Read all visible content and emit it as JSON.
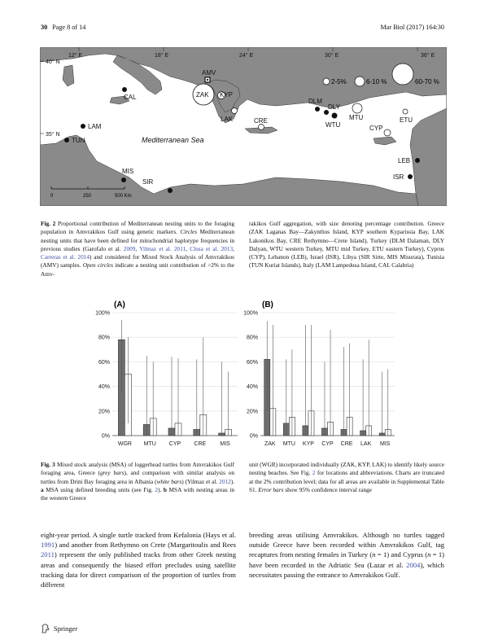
{
  "header": {
    "page_num": "30",
    "page_of": "Page 8 of 14",
    "journal": "Mar Biol (2017) 164:30"
  },
  "map": {
    "lon_labels": [
      "12° E",
      "18° E",
      "24° E",
      "30° E",
      "36° E"
    ],
    "lat_labels": [
      "40° N",
      "35° N"
    ],
    "sea_label": "Mediterranean Sea",
    "legend": [
      "2-5%",
      "6-10 %",
      "60-70 %"
    ],
    "scale": [
      "0",
      "250",
      "500 Km"
    ],
    "sites": [
      "AMV",
      "ZAK",
      "KYP",
      "LAK",
      "CRE",
      "CAL",
      "LAM",
      "TUN",
      "MIS",
      "SIR",
      "DLM",
      "DLY",
      "WTU",
      "MTU",
      "CYP",
      "ETU",
      "LEB",
      "ISR"
    ]
  },
  "fig2_caption": {
    "label": "Fig. 2",
    "left": "Proportional contribution of Mediterranean nesting units to the foraging population in Amvrakikos Gulf using genetic markers.",
    "circles_word": "Circles",
    "left_2": "Mediterranean nesting units that have been defined for mitochondrial haplotype frequencies in previous studies (Garofalo et al.",
    "ref1": "2009",
    "ref2": "Yilmaz et al. 2011",
    "ref3": "Clusa et al. 2013",
    "ref4": "Carreras et al. 2014",
    "left_3": "and considered for Mixed Stock Analysis of Amvrakikos (AMV) samples.",
    "open_circles": "Open circles",
    "left_4": "indicate a nesting unit contribution of >2% to the Amv-",
    "right": "rakikos Gulf aggregation, with size denoting percentage contribution. Greece (ZAK Laganas Bay—Zakynthos Island, KYP southern Kyparissia Bay, LAK Lakonikos Bay, CRE Rethymno—Crete Island), Turkey (DLM Dalaman, DLY Dalyan, WTU western Turkey, MTU mid Turkey, ETU eastern Turkey), Cyprus (CYP), Lebanon (LEB), Israel (ISR), Libya (SIR Sirte, MIS Misurata), Tunisia (TUN Kuriat Islands), Italy (LAM Lampedusa Island, CAL Calabria)"
  },
  "chart_data": [
    {
      "type": "bar",
      "title": "(A)",
      "categories": [
        "WGR",
        "MTU",
        "CYP",
        "CRE",
        "MIS"
      ],
      "series": [
        {
          "values": [
            78,
            9,
            6,
            5,
            2
          ],
          "color": "#6e6e6e"
        },
        {
          "values": [
            50,
            14,
            10,
            17,
            5
          ],
          "color": "#ffffff"
        }
      ],
      "error_upper": [
        [
          94,
          65,
          64,
          62,
          60
        ],
        [
          80,
          60,
          63,
          80,
          52
        ]
      ],
      "error_lower": [
        [
          35,
          0,
          0,
          0,
          0
        ],
        [
          10,
          0,
          0,
          0,
          0
        ]
      ],
      "yticks": [
        "0%",
        "20%",
        "40%",
        "60%",
        "80%",
        "100%"
      ],
      "ylim": [
        0,
        100
      ]
    },
    {
      "type": "bar",
      "title": "(B)",
      "categories": [
        "ZAK",
        "MTU",
        "KYP",
        "CYP",
        "CRE",
        "LAK",
        "MIS"
      ],
      "series": [
        {
          "values": [
            62,
            10,
            8,
            6,
            5,
            4,
            2
          ],
          "color": "#6e6e6e"
        },
        {
          "values": [
            22,
            15,
            20,
            11,
            15,
            8,
            5
          ],
          "color": "#ffffff"
        }
      ],
      "error_upper": [
        [
          93,
          62,
          90,
          60,
          72,
          62,
          52
        ],
        [
          90,
          70,
          90,
          86,
          75,
          78,
          54
        ]
      ],
      "error_lower": [
        [
          20,
          0,
          0,
          0,
          0,
          0,
          0
        ],
        [
          0,
          0,
          0,
          0,
          0,
          0,
          0
        ]
      ],
      "yticks": [
        "0%",
        "20%",
        "40%",
        "60%",
        "80%",
        "100%"
      ],
      "ylim": [
        0,
        100
      ]
    }
  ],
  "fig3_caption": {
    "label": "Fig. 3",
    "left_1": "Mixed stock analysis (MSA) of loggerhead turtles from Amvrakikos Gulf foraging area, Greece (",
    "grey_bars": "grey bars",
    "left_2": "), and comparison with similar analysis on turtles from Drini Bay foraging area in Albania (",
    "white_bars": "white bars",
    "left_3": ") (Yilmaz et al.",
    "ref": "2012",
    "left_4": ").",
    "a_label": "a",
    "left_5": "MSA using defined breeding units (see Fig.",
    "fig2ref": "2",
    "left_6": ").",
    "b_label": "b",
    "left_7": "MSA with nesting areas in the western Greece",
    "right_1": "unit (WGR) incorporated individually (ZAK, KYP, LAK) to identify likely source nesting beaches. See Fig.",
    "right_fig2": "2",
    "right_2": "for locations and abbreviations. Charts are truncated at the 2% contribution level; data for all areas are available in Supplemental Table S1.",
    "error_bars": "Error bars",
    "right_3": "show 95% confidence interval range"
  },
  "body": {
    "l1": "eight-year period. A single turtle tracked from Kefalonia (Hays et al.",
    "l1_ref": "1991",
    "l2": ") and another from Rethymno on Crete (Margaritoulis and Rees",
    "l2_ref": "2011",
    "l3": ") represent the only published tracks from other Greek nesting areas and consequently the biased effort precludes using satellite tracking data for direct comparison of the proportion of turtles from different",
    "r1": "breeding areas utilising Amvrakikos. Although no turtles tagged outside Greece have been recorded within Amvrakikos Gulf, tag recaptures from nesting females in Turkey (",
    "r_n1": "n",
    "r2": " = 1) and Cyprus (",
    "r_n2": "n",
    "r3": " = 1) have been recorded in the Adriatic Sea (Lazar et al.",
    "r_ref": "2004",
    "r4": "), which necessitates passing the entrance to Amvrakikos Gulf."
  },
  "footer": {
    "publisher": "Springer"
  }
}
